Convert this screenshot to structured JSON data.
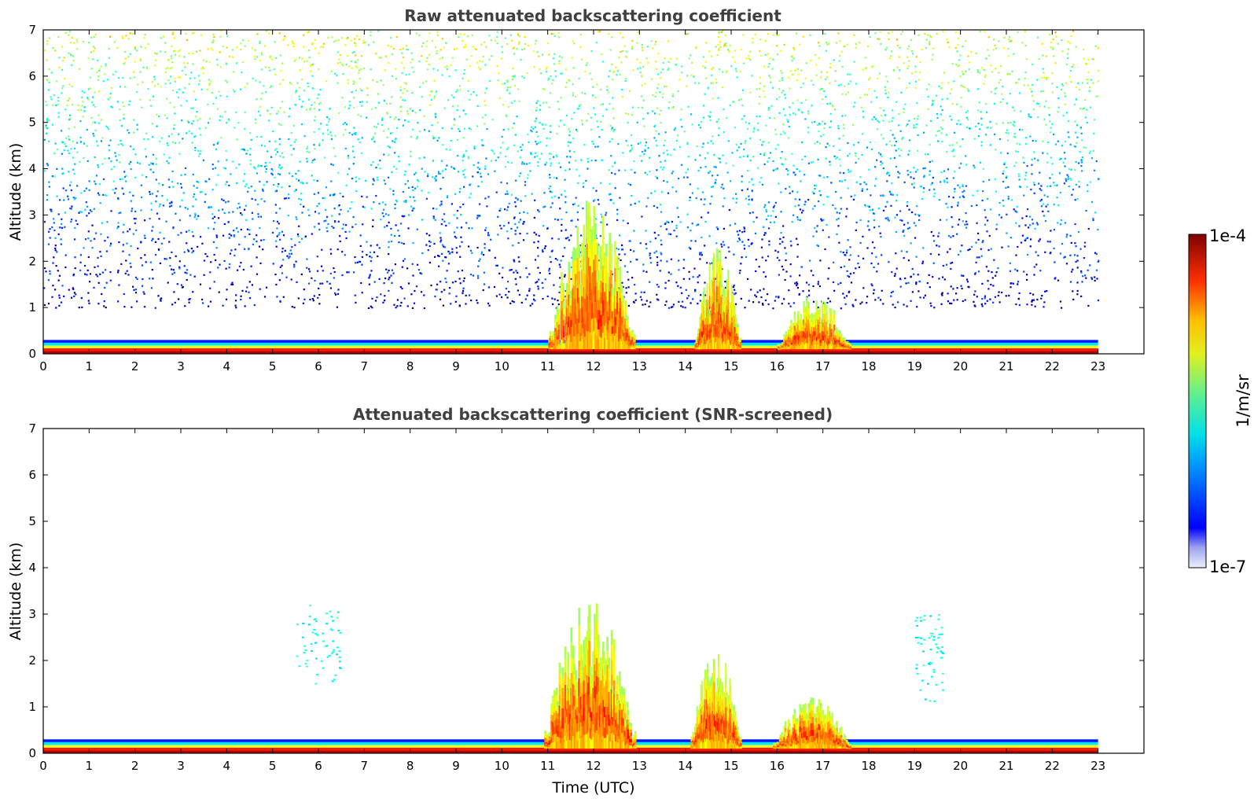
{
  "chart_data": [
    {
      "type": "heatmap",
      "title": "Raw attenuated backscattering coefficient",
      "xlabel": "",
      "ylabel": "Altitude (km)",
      "xlim": [
        0,
        24
      ],
      "ylim": [
        0,
        7
      ],
      "x_ticks": [
        0,
        1,
        2,
        3,
        4,
        5,
        6,
        7,
        8,
        9,
        10,
        11,
        12,
        13,
        14,
        15,
        16,
        17,
        18,
        19,
        20,
        21,
        22,
        23
      ],
      "y_ticks": [
        0,
        1,
        2,
        3,
        4,
        5,
        6,
        7
      ],
      "data_extent_hours": [
        0,
        23
      ],
      "colorscale": "jet",
      "scale": "log",
      "features": [
        {
          "name": "surface layer",
          "time": [
            0,
            23
          ],
          "altitude_km": [
            0,
            0.3
          ],
          "level": "high"
        },
        {
          "name": "noise band",
          "time": [
            0,
            23
          ],
          "altitude_km": [
            1.0,
            7.0
          ],
          "level": "noise"
        },
        {
          "name": "cloud",
          "time": [
            11.0,
            12.9
          ],
          "altitude_km": [
            0.1,
            3.4
          ],
          "level": "high"
        },
        {
          "name": "cloud",
          "time": [
            14.2,
            15.2
          ],
          "altitude_km": [
            0.1,
            2.3
          ],
          "level": "high"
        },
        {
          "name": "cloud",
          "time": [
            16.0,
            17.6
          ],
          "altitude_km": [
            0.1,
            1.3
          ],
          "level": "high"
        }
      ]
    },
    {
      "type": "heatmap",
      "title": "Attenuated backscattering coefficient (SNR-screened)",
      "xlabel": "Time (UTC)",
      "ylabel": "Altitude (km)",
      "xlim": [
        0,
        24
      ],
      "ylim": [
        0,
        7
      ],
      "x_ticks": [
        0,
        1,
        2,
        3,
        4,
        5,
        6,
        7,
        8,
        9,
        10,
        11,
        12,
        13,
        14,
        15,
        16,
        17,
        18,
        19,
        20,
        21,
        22,
        23
      ],
      "y_ticks": [
        0,
        1,
        2,
        3,
        4,
        5,
        6,
        7
      ],
      "data_extent_hours": [
        0,
        23
      ],
      "colorscale": "jet",
      "scale": "log",
      "features": [
        {
          "name": "surface layer",
          "time": [
            0,
            23
          ],
          "altitude_km": [
            0,
            0.3
          ],
          "level": "high"
        },
        {
          "name": "cloud",
          "time": [
            10.9,
            12.9
          ],
          "altitude_km": [
            0.1,
            3.4
          ],
          "level": "high"
        },
        {
          "name": "cloud",
          "time": [
            14.1,
            15.2
          ],
          "altitude_km": [
            0.1,
            2.3
          ],
          "level": "high"
        },
        {
          "name": "cloud",
          "time": [
            15.9,
            17.6
          ],
          "altitude_km": [
            0.1,
            1.25
          ],
          "level": "high"
        },
        {
          "name": "sparse echoes",
          "time": [
            5.5,
            6.5
          ],
          "altitude_km": [
            1.5,
            3.2
          ],
          "level": "low"
        },
        {
          "name": "sparse echoes",
          "time": [
            19.0,
            19.6
          ],
          "altitude_km": [
            1.1,
            3.0
          ],
          "level": "low"
        }
      ]
    }
  ],
  "colorbar": {
    "max_label": "1e-4",
    "min_label": "1e-7",
    "unit_label": "1/m/sr",
    "colorscale": "jet"
  }
}
